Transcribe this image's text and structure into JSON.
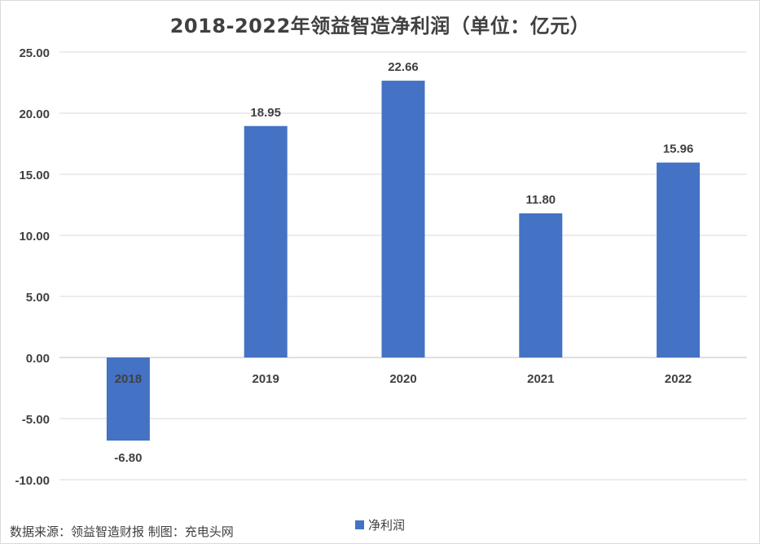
{
  "chart_data": {
    "type": "bar",
    "title": "2018-2022年领益智造净利润（单位：亿元）",
    "categories": [
      "2018",
      "2019",
      "2020",
      "2021",
      "2022"
    ],
    "series": [
      {
        "name": "净利润",
        "values": [
          -6.8,
          18.95,
          22.66,
          11.8,
          15.96
        ],
        "color": "#4472c4"
      }
    ],
    "data_labels": [
      "-6.80",
      "18.95",
      "22.66",
      "11.80",
      "15.96"
    ],
    "y_ticks": [
      "25.00",
      "20.00",
      "15.00",
      "10.00",
      "5.00",
      "0.00",
      "-5.00",
      "-10.00"
    ],
    "ylim": [
      -10,
      25
    ],
    "grid": true,
    "legend_position": "bottom"
  },
  "source_note": "数据来源：领益智造财报  制图：充电头网"
}
